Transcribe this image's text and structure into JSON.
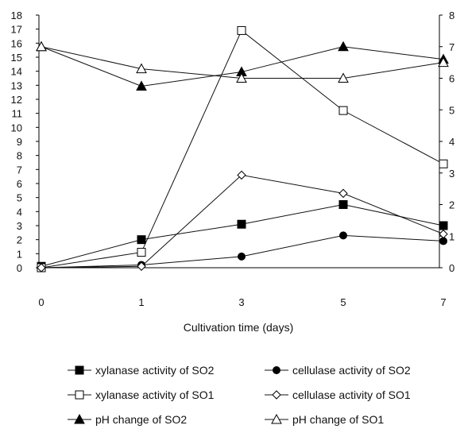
{
  "chart_data": {
    "type": "line",
    "xlabel": "Cultivation time (days)",
    "x": [
      0,
      1,
      3,
      5,
      7
    ],
    "x_tick_labels": [
      "0",
      "1",
      "3",
      "5",
      "7"
    ],
    "ylim_left": [
      0,
      18
    ],
    "ylim_right": [
      0,
      8
    ],
    "y_left_ticks": [
      "0",
      "1",
      "2",
      "3",
      "4",
      "5",
      "6",
      "7",
      "8",
      "9",
      "10",
      "11",
      "12",
      "13",
      "14",
      "15",
      "16",
      "17",
      "18"
    ],
    "y_right_ticks": [
      "0",
      "1",
      "2",
      "3",
      "4",
      "5",
      "6",
      "7",
      "8"
    ],
    "grid": false,
    "legend_position": "bottom",
    "series": [
      {
        "name": "xylanase activity of SO2",
        "axis": "left",
        "marker": "filled-square",
        "values": [
          0.1,
          2.0,
          3.1,
          4.5,
          3.0
        ]
      },
      {
        "name": "cellulase activity of SO2",
        "axis": "left",
        "marker": "filled-circle",
        "values": [
          0.0,
          0.2,
          0.8,
          2.3,
          1.9
        ]
      },
      {
        "name": "xylanase activity of SO1",
        "axis": "left",
        "marker": "open-square",
        "values": [
          0.0,
          1.1,
          16.9,
          11.2,
          7.4
        ]
      },
      {
        "name": "cellulase activity of SO1",
        "axis": "left",
        "marker": "open-diamond",
        "values": [
          0.0,
          0.1,
          6.6,
          5.3,
          2.4
        ]
      },
      {
        "name": "pH change of SO2",
        "axis": "right",
        "marker": "filled-triangle",
        "values": [
          7.0,
          5.75,
          6.2,
          7.0,
          6.6
        ]
      },
      {
        "name": "pH change of SO1",
        "axis": "right",
        "marker": "open-triangle",
        "values": [
          7.0,
          6.3,
          6.0,
          6.0,
          6.5
        ]
      }
    ]
  }
}
